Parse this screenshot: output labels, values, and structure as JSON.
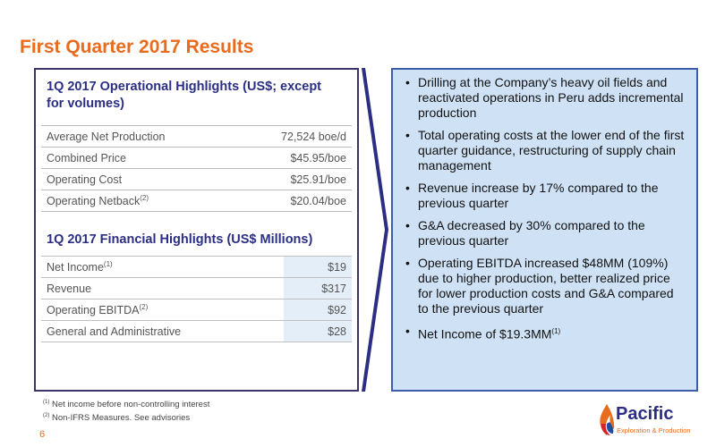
{
  "title": "First Quarter 2017 Results",
  "operational": {
    "heading": "1Q 2017 Operational Highlights (US$; except for volumes)",
    "rows": [
      {
        "label": "Average Net Production",
        "sup": "",
        "value": "72,524 boe/d"
      },
      {
        "label": "Combined Price",
        "sup": "",
        "value": "$45.95/boe"
      },
      {
        "label": "Operating Cost",
        "sup": "",
        "value": "$25.91/boe"
      },
      {
        "label": "Operating Netback",
        "sup": "(2)",
        "value": "$20.04/boe"
      }
    ]
  },
  "financial": {
    "heading": "1Q 2017 Financial Highlights (US$ Millions)",
    "rows": [
      {
        "label": "Net Income",
        "sup": "(1)",
        "value": "$19"
      },
      {
        "label": "Revenue",
        "sup": "",
        "value": "$317"
      },
      {
        "label": "Operating EBITDA",
        "sup": "(2)",
        "value": "$92"
      },
      {
        "label": "General and Administrative",
        "sup": "",
        "value": "$28"
      }
    ]
  },
  "bullets": [
    {
      "text": "Drilling at the Company’s heavy oil fields and reactivated operations in Peru adds incremental production",
      "sup": ""
    },
    {
      "text": "Total operating costs at the lower end of the first quarter guidance, restructuring of supply chain management",
      "sup": ""
    },
    {
      "text": "Revenue increase by 17% compared to the previous quarter",
      "sup": ""
    },
    {
      "text": "G&A decreased by 30% compared to the previous quarter",
      "sup": ""
    },
    {
      "text": "Operating EBITDA increased $48MM (109%) due to higher production, better realized price for lower production costs and G&A compared to the previous quarter",
      "sup": ""
    },
    {
      "text": "Net Income of $19.3MM",
      "sup": "(1)"
    }
  ],
  "bullet_glyph": "•",
  "footnotes": [
    {
      "mark": "(1)",
      "text": " Net income before non-controlling interest"
    },
    {
      "mark": "(2)",
      "text": " Non-IFRS Measures. See advisories"
    }
  ],
  "page_number": "6",
  "logo": {
    "name": "Pacific",
    "tagline": "Exploration & Production",
    "icon": "flame-drop-icon"
  },
  "colors": {
    "title": "#e96b1e",
    "heading": "#2b2e83",
    "panel_border": "#3a3468",
    "right_panel_bg": "#cfe2f5",
    "right_panel_border": "#3a5fa8",
    "arrow": "#2b2e83",
    "logo_orange": "#e96b1e",
    "logo_red": "#d6232a",
    "logo_blue": "#1e4e9c"
  }
}
